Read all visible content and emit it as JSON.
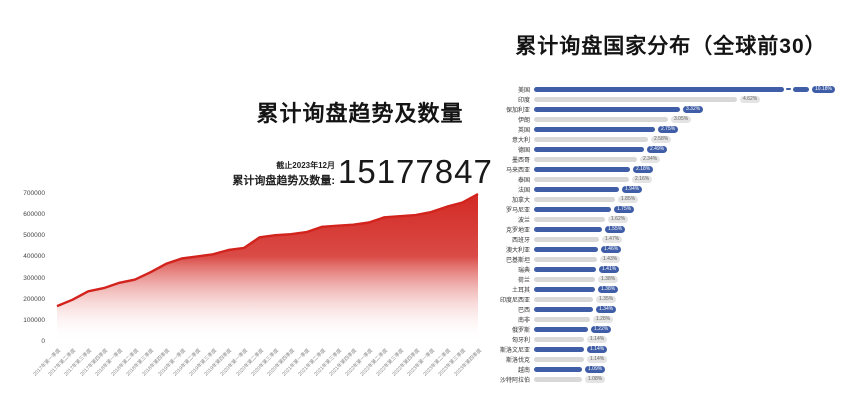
{
  "left_chart": {
    "title": "累计询盘趋势及数量",
    "asof_label": "截止2023年12月",
    "count_label": "累计询盘趋势及数量:",
    "count_value": "15177847"
  },
  "right_chart": {
    "title": "累计询盘国家分布（全球前30）"
  },
  "chart_data": [
    {
      "type": "area",
      "title": "累计询盘趋势及数量",
      "x": [
        "2017年第一季度",
        "2017年第二季度",
        "2017年第三季度",
        "2017年第四季度",
        "2018年第一季度",
        "2018年第二季度",
        "2018年第三季度",
        "2018年第四季度",
        "2019年第一季度",
        "2019年第二季度",
        "2019年第三季度",
        "2019年第四季度",
        "2020年第一季度",
        "2020年第二季度",
        "2020年第三季度",
        "2020年第四季度",
        "2021年第一季度",
        "2021年第二季度",
        "2021年第三季度",
        "2021年第四季度",
        "2022年第一季度",
        "2022年第二季度",
        "2022年第三季度",
        "2022年第四季度",
        "2023年第一季度",
        "2023年第二季度",
        "2023年第三季度",
        "2023年第四季度"
      ],
      "values": [
        170000,
        200000,
        240000,
        255000,
        280000,
        295000,
        330000,
        370000,
        395000,
        405000,
        415000,
        435000,
        445000,
        495000,
        505000,
        510000,
        520000,
        545000,
        550000,
        555000,
        565000,
        590000,
        595000,
        600000,
        615000,
        640000,
        660000,
        700000
      ],
      "ylim": [
        0,
        700000
      ],
      "yticks": [
        "700000",
        "600000",
        "500000",
        "400000",
        "300000",
        "200000",
        "100000",
        "0"
      ],
      "line_color": "#d2231d",
      "annotation": "截止2023年12月 累计询盘趋势及数量: 15177847",
      "legend": "off",
      "grid": "off"
    },
    {
      "type": "bar",
      "orientation": "horizontal",
      "title": "累计询盘国家分布（全球前30）",
      "categories": [
        "美国",
        "印度",
        "保加利亚",
        "伊朗",
        "英国",
        "意大利",
        "德国",
        "墨西哥",
        "马来西亚",
        "泰国",
        "法国",
        "加拿大",
        "罗马尼亚",
        "波兰",
        "克罗地亚",
        "西班牙",
        "澳大利亚",
        "巴基斯坦",
        "瑞典",
        "荷兰",
        "土耳其",
        "印度尼西亚",
        "巴西",
        "南非",
        "俄罗斯",
        "匈牙利",
        "斯洛文尼亚",
        "斯洛伐克",
        "越南",
        "沙特阿拉伯"
      ],
      "values": [
        10.18,
        4.62,
        3.32,
        3.05,
        2.75,
        2.58,
        2.49,
        2.34,
        2.18,
        2.16,
        1.94,
        1.85,
        1.75,
        1.62,
        1.55,
        1.47,
        1.46,
        1.43,
        1.41,
        1.38,
        1.38,
        1.35,
        1.34,
        1.28,
        1.22,
        1.14,
        1.14,
        1.14,
        1.09,
        1.08
      ],
      "labels": [
        "10.18%",
        "4.62%",
        "3.32%",
        "3.05%",
        "2.75%",
        "2.58%",
        "2.49%",
        "2.34%",
        "2.18%",
        "2.16%",
        "1.94%",
        "1.85%",
        "1.75%",
        "1.62%",
        "1.55%",
        "1.47%",
        "1.46%",
        "1.43%",
        "1.41%",
        "1.38%",
        "1.38%",
        "1.35%",
        "1.34%",
        "1.28%",
        "1.22%",
        "1.14%",
        "1.14%",
        "1.14%",
        "1.09%",
        "1.08%"
      ],
      "first_bar_truncated": true,
      "colors": {
        "bar_blue": "#3f5ea7",
        "bar_gray": "#d8d8d8",
        "pill_blue_bg": "#3f5ea7",
        "pill_blue_text": "#ffffff",
        "pill_gray_bg": "#e4e4e4",
        "pill_gray_text": "#666666"
      }
    }
  ]
}
